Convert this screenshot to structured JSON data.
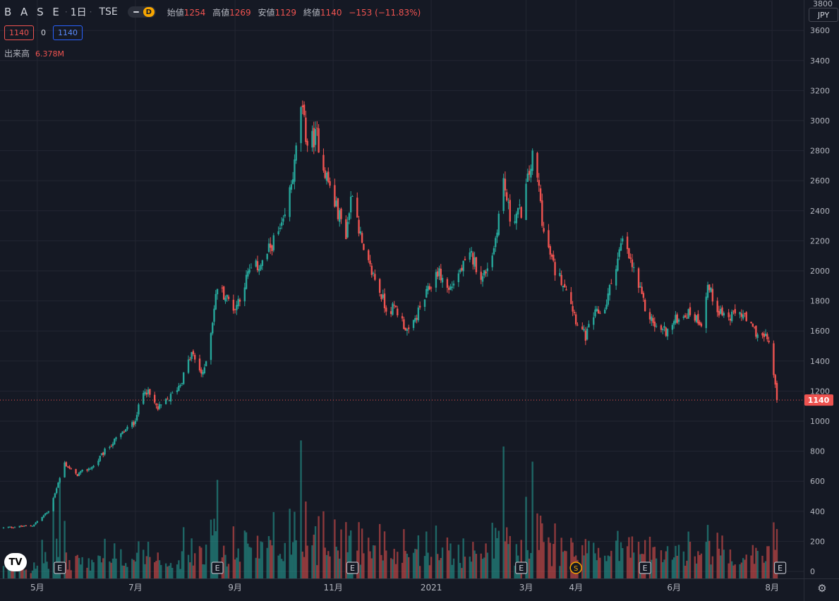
{
  "header": {
    "symbol": "B A S E",
    "interval": "1日",
    "exchange": "TSE",
    "mode_badge": "D",
    "ohlc": [
      {
        "label": "始値",
        "value": "1254"
      },
      {
        "label": "高値",
        "value": "1269"
      },
      {
        "label": "安値",
        "value": "1129"
      },
      {
        "label": "終値",
        "value": "1140"
      }
    ],
    "change": "−153 (−11.83%)"
  },
  "price_boxes": {
    "bid": "1140",
    "spread": "0",
    "ask": "1140"
  },
  "volume_legend": {
    "label": "出来高",
    "value": "6.378M"
  },
  "currency": "JPY",
  "logo_text": "TV",
  "colors": {
    "up": "#26a69a",
    "down": "#ef5350",
    "background": "#151924",
    "grid": "#232632"
  },
  "chart_data": {
    "type": "candlestick",
    "ylim": [
      0,
      3800
    ],
    "y_ticks": [
      0,
      200,
      400,
      600,
      800,
      1000,
      1200,
      1400,
      1600,
      1800,
      2000,
      2200,
      2400,
      2600,
      2800,
      3000,
      3200,
      3400,
      3600
    ],
    "x_tick_labels": [
      "5月",
      "7月",
      "9月",
      "11月",
      "2021",
      "3月",
      "4月",
      "6月",
      "8月"
    ],
    "x_tick_dates": [
      "2020-05-01",
      "2020-07-01",
      "2020-09-01",
      "2020-11-01",
      "2021-01-01",
      "2021-03-01",
      "2021-04-01",
      "2021-06-01",
      "2021-08-01"
    ],
    "x_range": [
      "2020-04-10",
      "2021-08-08"
    ],
    "last_price": 1140,
    "last_price_label": "1140",
    "close_keypoints": [
      [
        "2020-04-10",
        290
      ],
      [
        "2020-04-28",
        305
      ],
      [
        "2020-05-08",
        400
      ],
      [
        "2020-05-15",
        620
      ],
      [
        "2020-05-18",
        720
      ],
      [
        "2020-05-25",
        640
      ],
      [
        "2020-06-05",
        700
      ],
      [
        "2020-06-12",
        800
      ],
      [
        "2020-06-19",
        880
      ],
      [
        "2020-06-30",
        990
      ],
      [
        "2020-07-07",
        1220
      ],
      [
        "2020-07-15",
        1080
      ],
      [
        "2020-07-22",
        1150
      ],
      [
        "2020-07-29",
        1250
      ],
      [
        "2020-08-05",
        1450
      ],
      [
        "2020-08-12",
        1300
      ],
      [
        "2020-08-17",
        1600
      ],
      [
        "2020-08-21",
        1900
      ],
      [
        "2020-09-01",
        1750
      ],
      [
        "2020-09-10",
        2000
      ],
      [
        "2020-09-18",
        2050
      ],
      [
        "2020-09-25",
        2200
      ],
      [
        "2020-10-01",
        2300
      ],
      [
        "2020-10-08",
        2700
      ],
      [
        "2020-10-12",
        3100
      ],
      [
        "2020-10-16",
        2850
      ],
      [
        "2020-10-22",
        2900
      ],
      [
        "2020-10-26",
        2700
      ],
      [
        "2020-11-02",
        2450
      ],
      [
        "2020-11-09",
        2250
      ],
      [
        "2020-11-13",
        2550
      ],
      [
        "2020-11-20",
        2100
      ],
      [
        "2020-11-27",
        1950
      ],
      [
        "2020-12-04",
        1750
      ],
      [
        "2020-12-10",
        1750
      ],
      [
        "2020-12-18",
        1580
      ],
      [
        "2020-12-25",
        1750
      ],
      [
        "2021-01-05",
        2000
      ],
      [
        "2021-01-12",
        1870
      ],
      [
        "2021-01-19",
        2000
      ],
      [
        "2021-01-26",
        2100
      ],
      [
        "2021-02-02",
        1950
      ],
      [
        "2021-02-09",
        2150
      ],
      [
        "2021-02-15",
        2600
      ],
      [
        "2021-02-19",
        2350
      ],
      [
        "2021-02-26",
        2400
      ],
      [
        "2021-03-05",
        2750
      ],
      [
        "2021-03-09",
        2550
      ],
      [
        "2021-03-12",
        2250
      ],
      [
        "2021-03-19",
        2000
      ],
      [
        "2021-03-26",
        1900
      ],
      [
        "2021-04-01",
        1680
      ],
      [
        "2021-04-07",
        1560
      ],
      [
        "2021-04-12",
        1700
      ],
      [
        "2021-04-19",
        1750
      ],
      [
        "2021-04-26",
        2050
      ],
      [
        "2021-04-30",
        2200
      ],
      [
        "2021-05-07",
        2000
      ],
      [
        "2021-05-14",
        1750
      ],
      [
        "2021-05-21",
        1620
      ],
      [
        "2021-05-28",
        1600
      ],
      [
        "2021-06-04",
        1700
      ],
      [
        "2021-06-11",
        1720
      ],
      [
        "2021-06-18",
        1660
      ],
      [
        "2021-06-22",
        1900
      ],
      [
        "2021-06-28",
        1750
      ],
      [
        "2021-07-05",
        1680
      ],
      [
        "2021-07-12",
        1730
      ],
      [
        "2021-07-19",
        1620
      ],
      [
        "2021-07-26",
        1560
      ],
      [
        "2021-07-30",
        1540
      ],
      [
        "2021-08-02",
        1300
      ],
      [
        "2021-08-04",
        1140
      ]
    ],
    "volume_peaks_millions": [
      [
        "2020-05-15",
        6.5
      ],
      [
        "2020-08-21",
        6.5
      ],
      [
        "2020-10-12",
        9.1
      ],
      [
        "2021-02-15",
        8.7
      ],
      [
        "2021-03-05",
        7.7
      ],
      [
        "2021-08-02",
        3.7
      ]
    ],
    "event_markers": [
      {
        "date": "2020-05-15",
        "label": "E"
      },
      {
        "date": "2020-08-21",
        "label": "E"
      },
      {
        "date": "2020-11-13",
        "label": "E"
      },
      {
        "date": "2021-02-26",
        "label": "E"
      },
      {
        "date": "2021-04-01",
        "label": "S"
      },
      {
        "date": "2021-05-14",
        "label": "E"
      },
      {
        "date": "2021-08-06",
        "label": "E"
      }
    ]
  }
}
